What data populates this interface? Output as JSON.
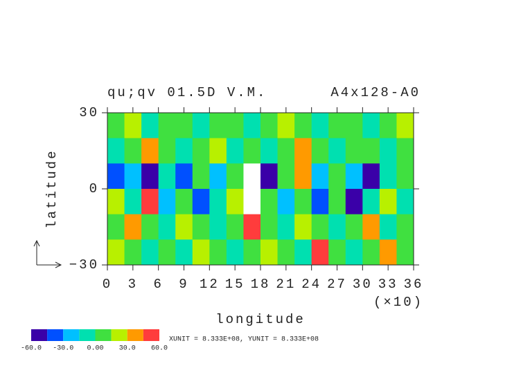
{
  "chart_data": {
    "type": "shaded-contour",
    "title": "qu;qv 01.5D V.M.",
    "subtitle": "A4x128-A0",
    "xlabel": "longitude",
    "ylabel": "latitude",
    "x_scale_note": "(×10)",
    "footer": "XUNIT = 8.333E+08, YUNIT = 8.333E+08",
    "xlim": [
      0,
      360
    ],
    "ylim": [
      -30,
      30
    ],
    "xticks": [
      {
        "value": 0,
        "label": "0"
      },
      {
        "value": 30,
        "label": "3"
      },
      {
        "value": 60,
        "label": "6"
      },
      {
        "value": 90,
        "label": "9"
      },
      {
        "value": 120,
        "label": "12"
      },
      {
        "value": 150,
        "label": "15"
      },
      {
        "value": 180,
        "label": "18"
      },
      {
        "value": 210,
        "label": "21"
      },
      {
        "value": 240,
        "label": "24"
      },
      {
        "value": 270,
        "label": "27"
      },
      {
        "value": 300,
        "label": "30"
      },
      {
        "value": 330,
        "label": "33"
      },
      {
        "value": 360,
        "label": "36"
      }
    ],
    "yticks": [
      {
        "value": -30,
        "label": "−30"
      },
      0,
      30
    ],
    "levels": [
      -60,
      -45,
      -30,
      -15,
      0,
      15,
      30,
      45,
      60
    ],
    "colors": [
      "#3a00a8",
      "#0050ff",
      "#00c0ff",
      "#00e0b0",
      "#40e040",
      "#b8f000",
      "#ff9a00",
      "#ff3c3c"
    ],
    "colorbar_ticks": [
      {
        "value": -60,
        "label": "-60.0"
      },
      {
        "value": -30,
        "label": "-30.0"
      },
      {
        "value": 0,
        "label": "0.00"
      },
      {
        "value": 30,
        "label": "30.0"
      },
      {
        "value": 60,
        "label": "60.0"
      }
    ],
    "field": [
      [
        8,
        20,
        -8,
        8,
        5,
        -8,
        10,
        8,
        -5,
        8,
        20,
        8,
        -8,
        5,
        10,
        -8,
        8,
        20
      ],
      [
        -8,
        8,
        35,
        8,
        -8,
        8,
        20,
        -8,
        8,
        -5,
        8,
        35,
        8,
        -8,
        10,
        8,
        -8,
        8
      ],
      [
        -35,
        -20,
        -50,
        -8,
        -40,
        8,
        -20,
        8,
        70,
        -50,
        8,
        35,
        -20,
        8,
        -20,
        -50,
        -8,
        8
      ],
      [
        20,
        -8,
        45,
        -20,
        8,
        -35,
        -8,
        20,
        65,
        8,
        -20,
        8,
        -35,
        8,
        -50,
        -8,
        20,
        -8
      ],
      [
        8,
        35,
        8,
        -8,
        20,
        8,
        -8,
        8,
        45,
        8,
        -8,
        20,
        8,
        -8,
        8,
        35,
        -8,
        8
      ],
      [
        20,
        8,
        -8,
        8,
        -8,
        20,
        8,
        -8,
        8,
        20,
        8,
        -8,
        45,
        8,
        -8,
        8,
        40,
        8
      ]
    ]
  }
}
